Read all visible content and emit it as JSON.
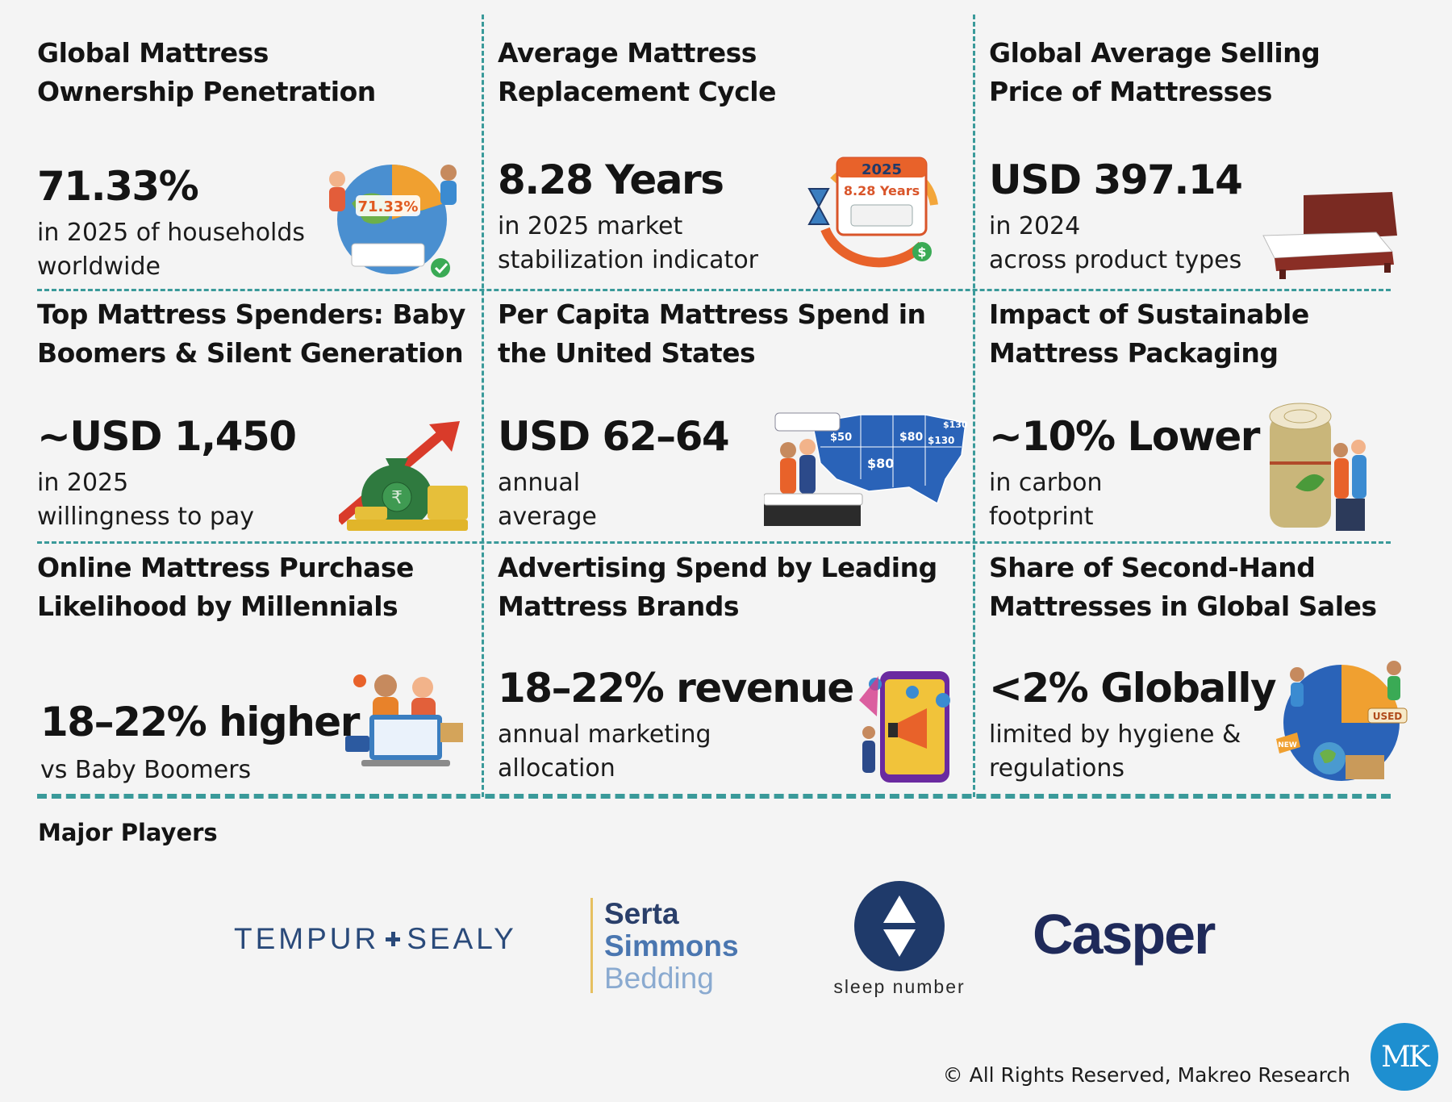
{
  "cards": [
    {
      "title": "Global Mattress\nOwnership Penetration",
      "value": "71.33%",
      "desc": "in 2025 of households\nworldwide",
      "badge": "71.33%"
    },
    {
      "title": "Average Mattress\nReplacement Cycle",
      "value": "8.28 Years",
      "desc": "in 2025 market\nstabilization indicator",
      "badge_year": "2025",
      "badge_value": "8.28 Years"
    },
    {
      "title": "Global Average Selling\nPrice of Mattresses",
      "value": "USD 397.14",
      "desc": "in 2024\n across product types"
    },
    {
      "title": "Top Mattress Spenders: Baby\nBoomers & Silent Generation",
      "value": "~USD 1,450",
      "desc": " in 2025\n willingness to pay",
      "badge": "₹"
    },
    {
      "title": "Per Capita Mattress Spend in\nthe United States",
      "value": "USD 62–64",
      "desc": "annual\naverage",
      "map_labels": [
        "$50",
        "$80",
        "$130",
        "$130",
        "$80"
      ]
    },
    {
      "title": "Impact of Sustainable\nMattress Packaging",
      "value": "~10% Lower",
      "desc": "in carbon\nfootprint"
    },
    {
      "title": "Online Mattress Purchase\nLikelihood by Millennials",
      "value": "18–22% higher",
      "desc": "vs Baby Boomers"
    },
    {
      "title": "Advertising Spend by Leading\nMattress Brands",
      "value": "18–22% revenue",
      "desc": "annual marketing\nallocation"
    },
    {
      "title": "Share of Second-Hand\nMattresses in Global Sales",
      "value": "<2% Globally",
      "desc": "limited by hygiene &\nregulations",
      "badge_used": "USED",
      "badge_new": "NEW"
    }
  ],
  "major_players": {
    "title": "Major Players",
    "tempur_left": "TEMPUR",
    "tempur_right": "SEALY",
    "serta": [
      "Serta",
      "Simmons",
      "Bedding"
    ],
    "sleep_number": "sleep number",
    "casper": "Casper"
  },
  "footer": "© All Rights Reserved, Makreo Research",
  "brand_badge": "MK",
  "colors": {
    "accent": "#3a9a9a",
    "navy": "#1f3a6a",
    "mk_blue": "#1e8fd0"
  }
}
